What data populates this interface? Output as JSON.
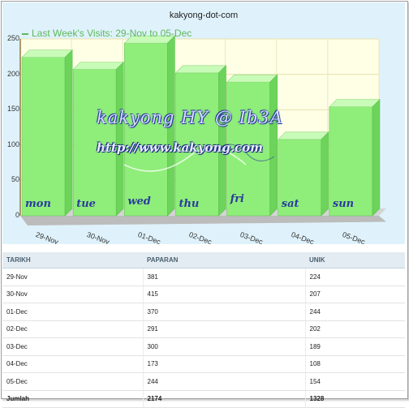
{
  "chart_data": {
    "type": "bar",
    "title": "kakyong-dot-com",
    "legend_label": "Last Week's Visits: 29-Nov to 05-Dec",
    "categories": [
      "29-Nov",
      "30-Nov",
      "01-Dec",
      "02-Dec",
      "03-Dec",
      "04-Dec",
      "05-Dec"
    ],
    "bar_labels": [
      "mon",
      "tue",
      "wed",
      "thu",
      "fri",
      "sat",
      "sun"
    ],
    "series": [
      {
        "name": "Last Week's Visits: 29-Nov to 05-Dec",
        "values": [
          224,
          207,
          244,
          202,
          189,
          108,
          154
        ]
      }
    ],
    "ylim": [
      0,
      250
    ],
    "yticks": [
      "0",
      "50",
      "100",
      "150",
      "200",
      "250"
    ],
    "grid": true,
    "colors": {
      "bar": "#8fee7a",
      "bar_top": "#c9fbb8",
      "bar_side": "#6cd45a",
      "plot_bg": "#ffffe6",
      "outer_bg": "#dff2fb",
      "legend": "#5cb85c"
    }
  },
  "watermark": {
    "line1": "kakyong HY @ Ib3A",
    "line2": "http://www.kakyong.com"
  },
  "table": {
    "headers": [
      "TARIKH",
      "PAPARAN",
      "UNIK"
    ],
    "rows": [
      [
        "29-Nov",
        "381",
        "224"
      ],
      [
        "30-Nov",
        "415",
        "207"
      ],
      [
        "01-Dec",
        "370",
        "244"
      ],
      [
        "02-Dec",
        "291",
        "202"
      ],
      [
        "03-Dec",
        "300",
        "189"
      ],
      [
        "04-Dec",
        "173",
        "108"
      ],
      [
        "05-Dec",
        "244",
        "154"
      ]
    ],
    "total": [
      "Jumlah",
      "2174",
      "1328"
    ]
  }
}
